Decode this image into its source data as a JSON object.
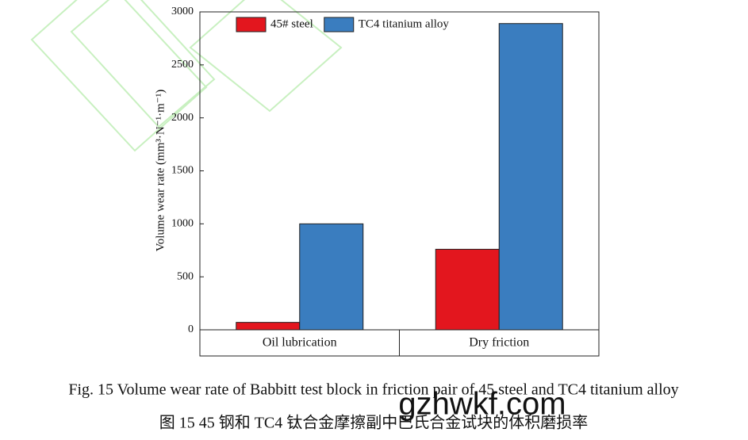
{
  "chart_data": {
    "type": "bar",
    "y_label": "Volume wear rate (mm³·N⁻¹·m⁻¹)",
    "categories": [
      "Oil lubrication",
      "Dry friction"
    ],
    "series": [
      {
        "name": "45# steel",
        "color": "#e3161e",
        "values": [
          70,
          760
        ]
      },
      {
        "name": "TC4 titanium alloy",
        "color": "#3a7dbf",
        "values": [
          1000,
          2890
        ]
      }
    ],
    "ylim": [
      0,
      3000
    ],
    "yticks": [
      0,
      500,
      1000,
      1500,
      2000,
      2500,
      3000
    ],
    "legend": "upper-left",
    "caption_en": "Fig. 15 Volume wear rate of Babbitt test block in friction pair of 45 steel and TC4 titanium alloy",
    "caption_zh": "图 15 45 钢和 TC4 钛合金摩擦副中巴氏合金试块的体积磨损率",
    "watermark": "gzhwkf.com"
  }
}
